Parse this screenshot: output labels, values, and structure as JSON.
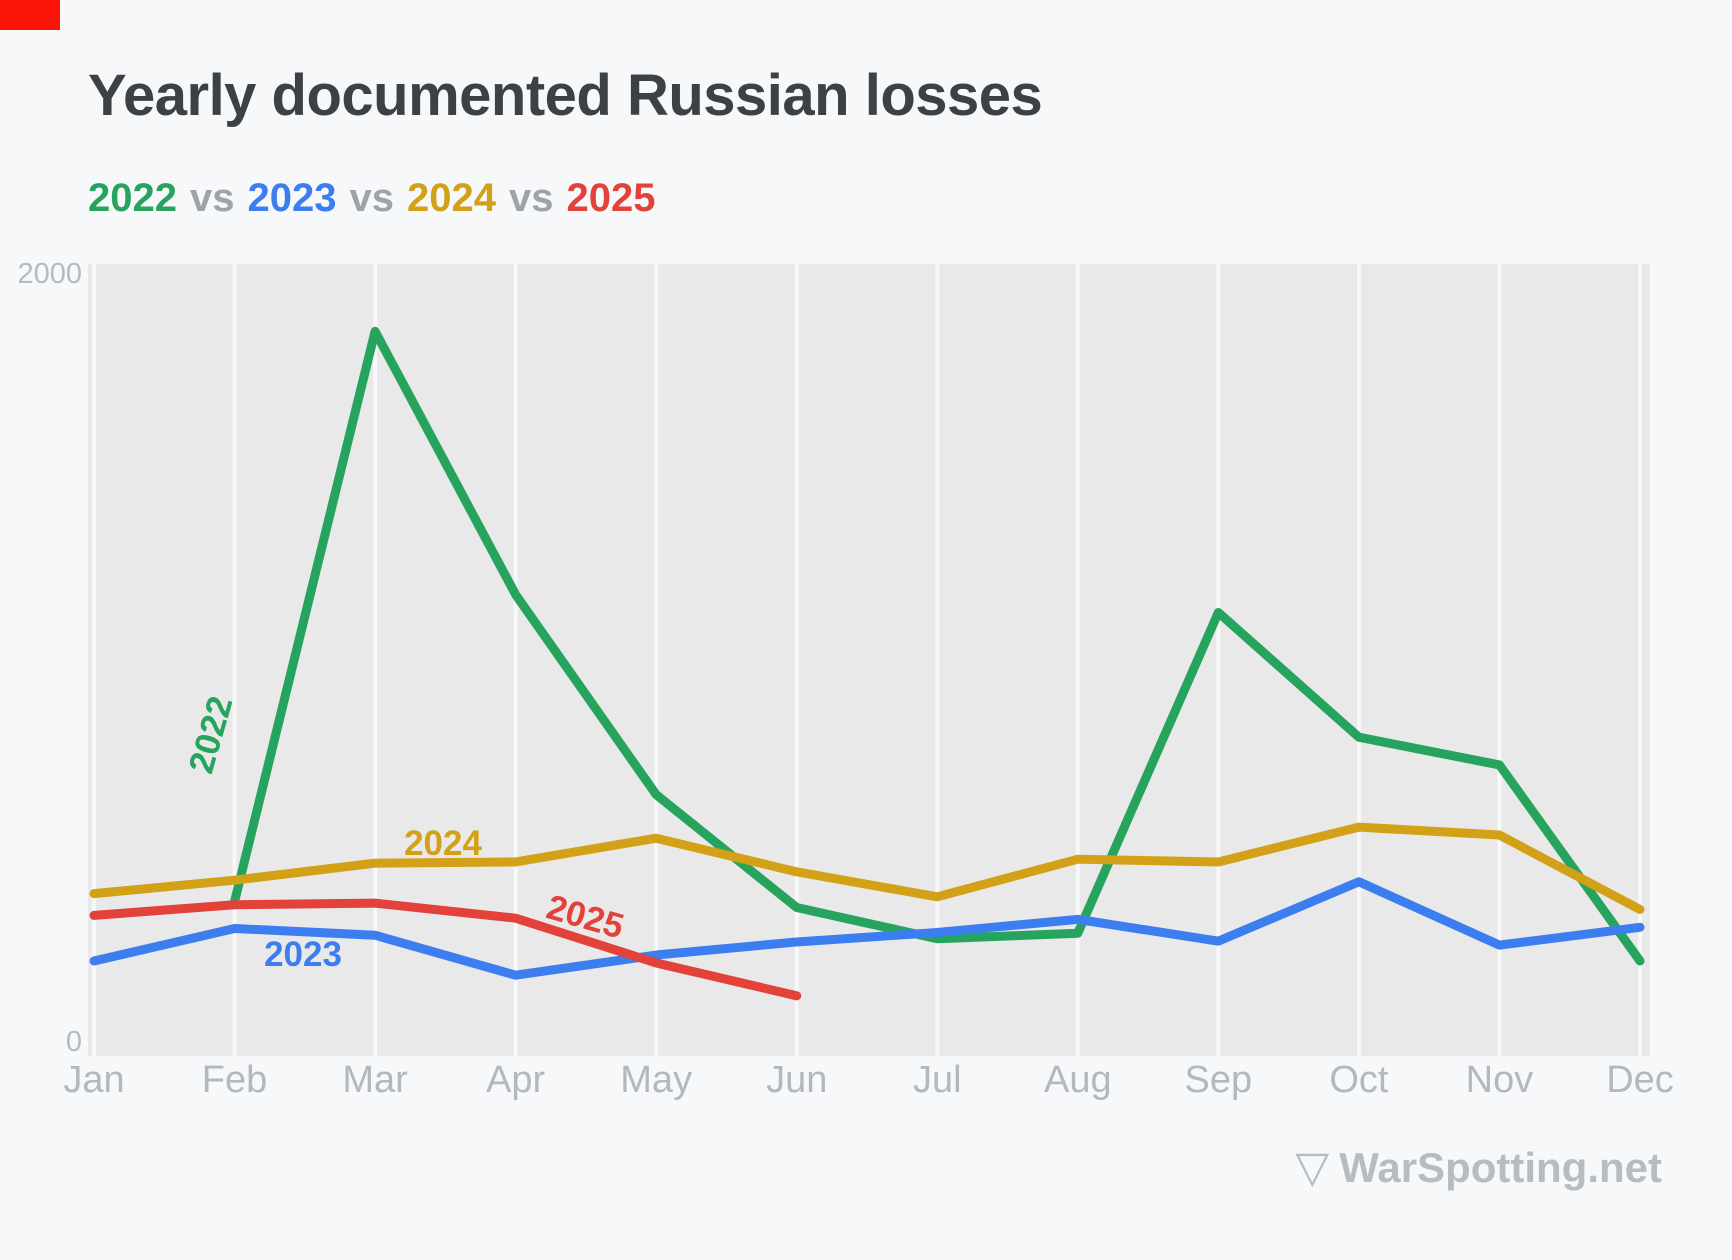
{
  "page": {
    "background": "#f7f8fa",
    "recording_indicator_color": "#fa1407"
  },
  "header": {
    "title": "Yearly documented Russian losses",
    "title_color": "#3d4144",
    "legend": [
      {
        "text": "2022",
        "color": "#26a35c"
      },
      {
        "text": "vs",
        "color": "#9ea3ab"
      },
      {
        "text": "2023",
        "color": "#3c7df0"
      },
      {
        "text": "vs",
        "color": "#9ea3ab"
      },
      {
        "text": "2024",
        "color": "#d2a117"
      },
      {
        "text": "vs",
        "color": "#9ea3ab"
      },
      {
        "text": "2025",
        "color": "#e2423a"
      }
    ]
  },
  "chart_data": {
    "type": "line",
    "title": "Yearly documented Russian losses",
    "categories": [
      "Jan",
      "Feb",
      "Mar",
      "Apr",
      "May",
      "Jun",
      "Jul",
      "Aug",
      "Sep",
      "Oct",
      "Nov",
      "Dec"
    ],
    "series": [
      {
        "name": "2022",
        "color": "#26a35c",
        "values": [
          null,
          390,
          1830,
          1165,
          660,
          375,
          296,
          310,
          1120,
          805,
          735,
          240
        ],
        "label": {
          "text": "2022",
          "x": 222,
          "y": 738,
          "rotate": -74
        }
      },
      {
        "name": "2023",
        "color": "#3c7df0",
        "values": [
          240,
          322,
          305,
          204,
          255,
          288,
          312,
          345,
          290,
          440,
          280,
          325
        ],
        "label": {
          "text": "2023",
          "x": 303,
          "y": 966,
          "rotate": 0
        }
      },
      {
        "name": "2024",
        "color": "#d2a117",
        "values": [
          410,
          444,
          487,
          490,
          550,
          465,
          402,
          497,
          490,
          578,
          558,
          370
        ],
        "label": {
          "text": "2024",
          "x": 443,
          "y": 855,
          "rotate": 0
        }
      },
      {
        "name": "2025",
        "color": "#e2423a",
        "values": [
          355,
          382,
          386,
          348,
          235,
          152,
          null,
          null,
          null,
          null,
          null,
          null
        ],
        "label": {
          "text": "2025",
          "x": 582,
          "y": 928,
          "rotate": 16
        }
      }
    ],
    "ylim": [
      0,
      2000
    ],
    "y_axis_labels": {
      "top": "2000",
      "bottom": "0"
    },
    "grid": "vertical line per month, no horizontal gridlines",
    "legend_position": "subtitle row under title",
    "plot_background": "#e9e9e9",
    "gridline_color": "#f7f8fa",
    "axis_label_color": "#b3b8bf"
  },
  "watermark": {
    "icon": "▽",
    "text": "WarSpotting.net",
    "color": "#b7bbc3"
  }
}
